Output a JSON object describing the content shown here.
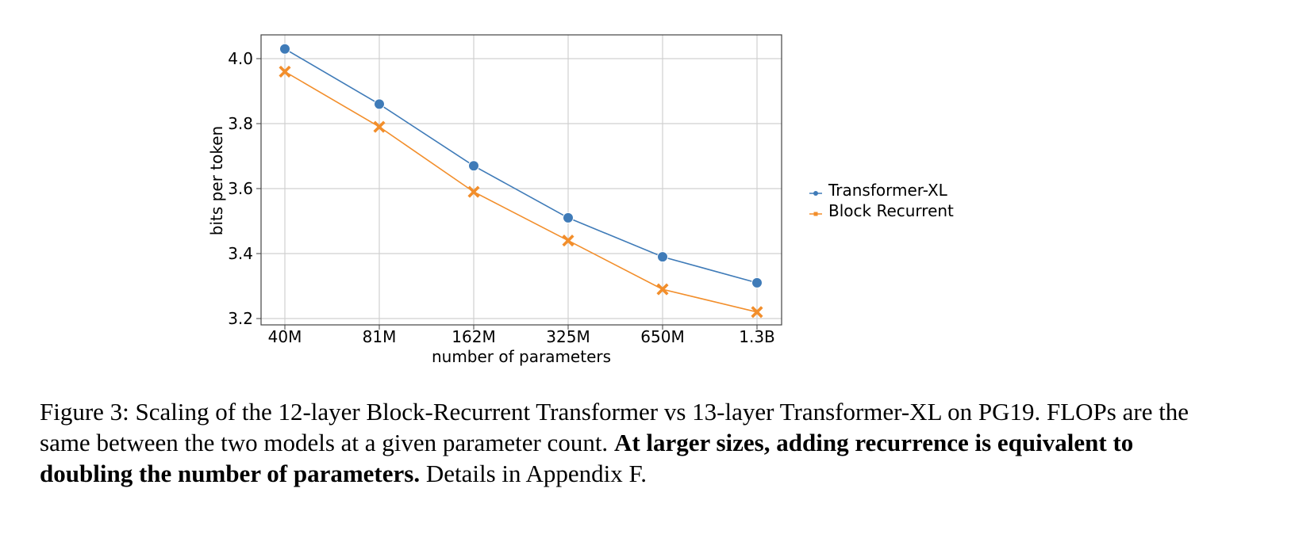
{
  "chart_data": {
    "type": "line",
    "title": "",
    "xlabel": "number of parameters",
    "ylabel": "bits per token",
    "categories": [
      "40M",
      "81M",
      "162M",
      "325M",
      "650M",
      "1.3B"
    ],
    "x_scale": "log",
    "series": [
      {
        "name": "Transformer-XL",
        "color": "#3f7bb8",
        "marker": "circle",
        "values": [
          4.03,
          3.86,
          3.67,
          3.51,
          3.39,
          3.31
        ]
      },
      {
        "name": "Block Recurrent",
        "color": "#f28e2b",
        "marker": "x",
        "values": [
          3.96,
          3.79,
          3.59,
          3.44,
          3.29,
          3.22
        ]
      }
    ],
    "yticks": [
      "3.2",
      "3.4",
      "3.6",
      "3.8",
      "4.0"
    ],
    "ylim": [
      3.18,
      4.07
    ],
    "grid": true,
    "legend_position": "right"
  },
  "caption": {
    "prefix": "Figure 3: Scaling of the 12-layer Block-Recurrent Transformer vs 13-layer Transformer-XL on PG19. FLOPs are the same between the two models at a given parameter count. ",
    "bold": "At larger sizes, adding recurrence is equivalent to doubling the number of parameters.",
    "suffix": " Details in Appendix F."
  }
}
